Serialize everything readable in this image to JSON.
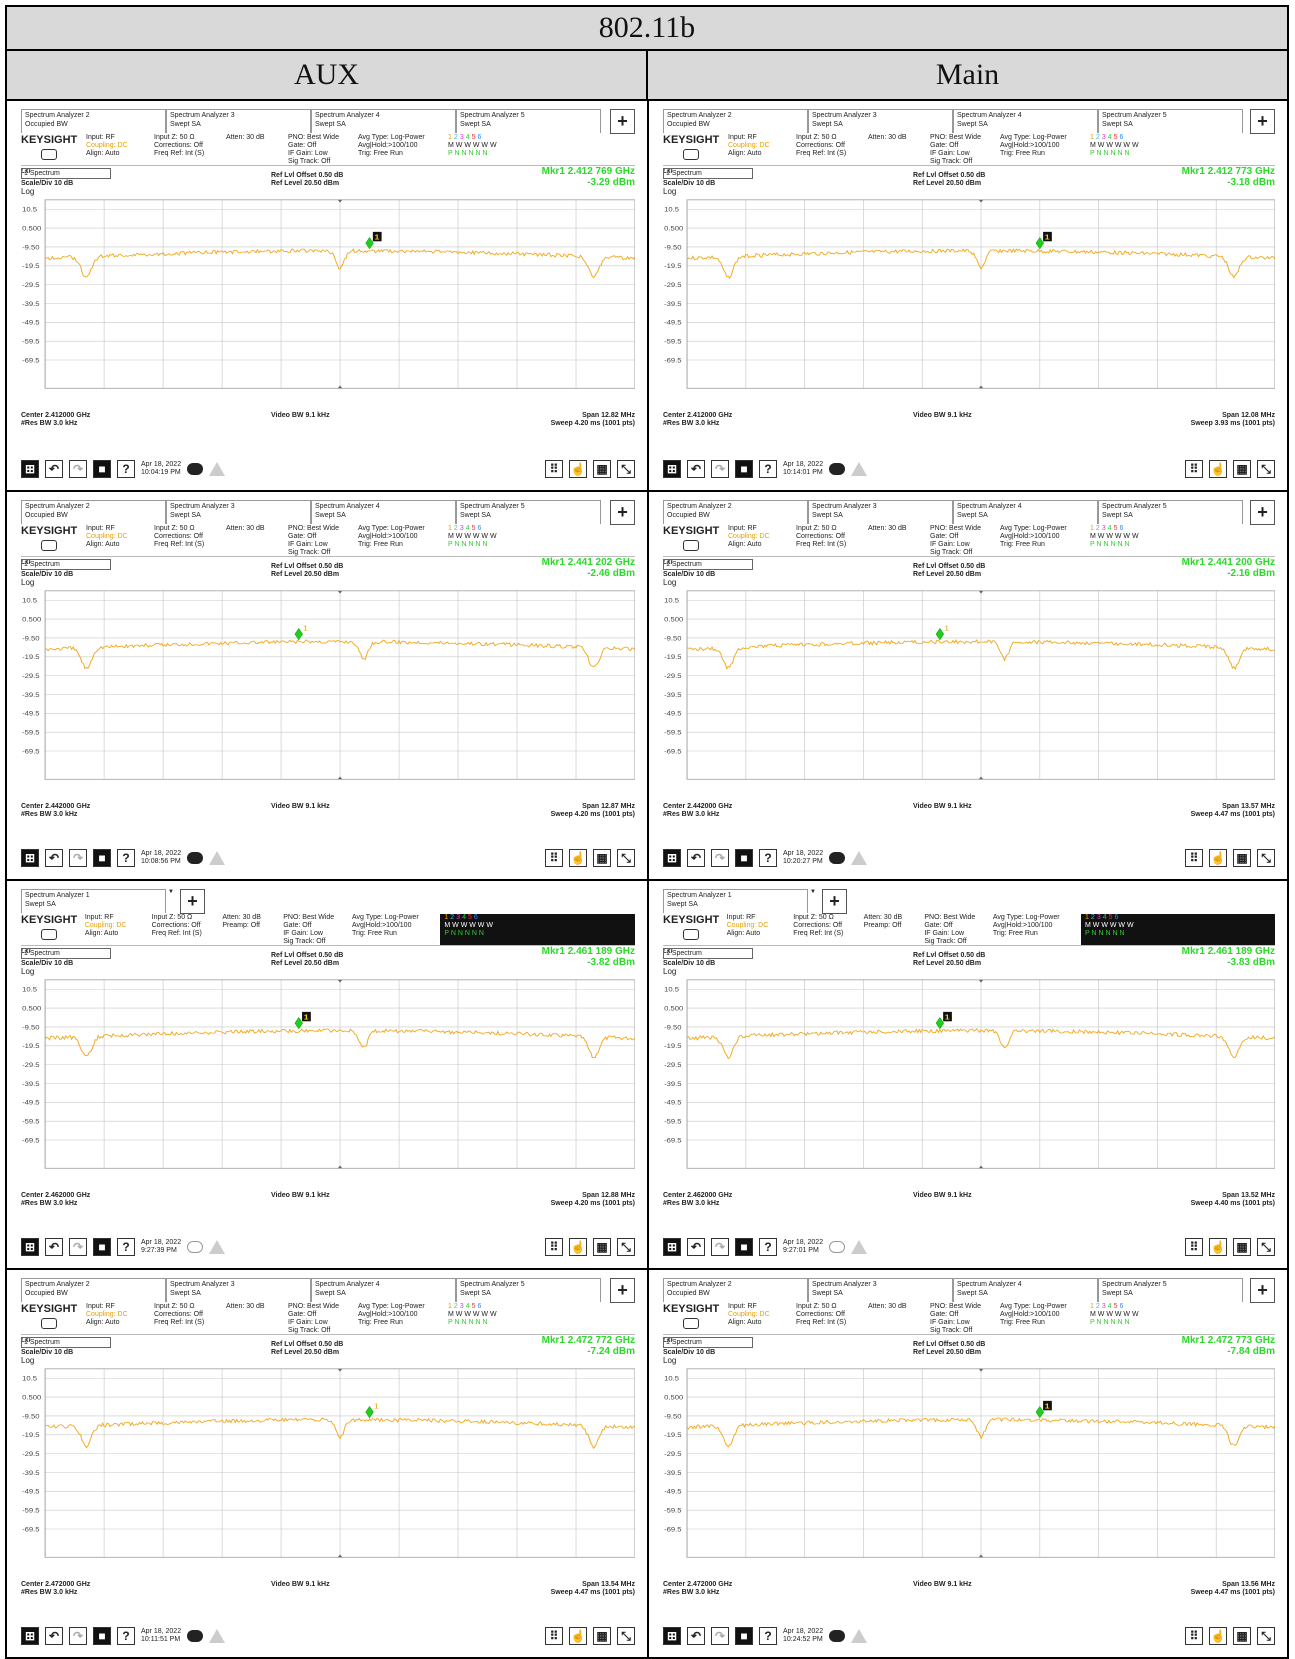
{
  "title": "802.11b",
  "columns": [
    "AUX",
    "Main"
  ],
  "common": {
    "brand": "KEYSIGHT",
    "lxi": "LXI",
    "input": "Input: RF",
    "coupling": "Coupling: DC",
    "align": "Align: Auto",
    "inputz": "Input Z: 50 Ω",
    "corrections": "Corrections: Off",
    "freqref": "Freq Ref: Int (S)",
    "atten": "Atten: 30 dB",
    "preamp": "Preamp: Off",
    "pno": "PNO: Best Wide",
    "gate": "Gate: Off",
    "ifgain": "IF Gain: Low",
    "sigtrack": "Sig Track: Off",
    "avgtype": "Avg Type: Log-Power",
    "avghold": "Avg|Hold:>100/100",
    "trig": "Trig: Free Run",
    "dropdown": "1 Spectrum",
    "scale": "Scale/Div 10 dB",
    "log": "Log",
    "reflvl_offset": "Ref Lvl Offset 0.50 dB",
    "ref_level": "Ref Level 20.50 dBm",
    "video_bw": "Video BW 9.1 kHz",
    "res_bw": "#Res BW 3.0 kHz",
    "trace_nums": [
      "1",
      "2",
      "3",
      "4",
      "5",
      "6"
    ],
    "trace_m": "M W W W W W",
    "trace_p": "P N N N N N",
    "y_ticks": [
      "10.5",
      "0.500",
      "-9.50",
      "-19.5",
      "-29.5",
      "-39.5",
      "-49.5",
      "-59.5",
      "-69.5"
    ]
  },
  "tabs4": [
    {
      "name": "Spectrum Analyzer 2",
      "mode": "Occupied BW"
    },
    {
      "name": "Spectrum Analyzer 3",
      "mode": "Swept SA"
    },
    {
      "name": "Spectrum Analyzer 4",
      "mode": "Swept SA"
    },
    {
      "name": "Spectrum Analyzer 5",
      "mode": "Swept SA"
    }
  ],
  "tabs1": [
    {
      "name": "Spectrum Analyzer 1",
      "mode": "Swept SA"
    }
  ],
  "panels": [
    {
      "id": "r1-aux",
      "row": 0,
      "col": 0,
      "tabs": "tabs4",
      "mkr_freq": "Mkr1  2.412 769 GHz",
      "mkr_amp": "-3.29 dBm",
      "center": "Center 2.412000 GHz",
      "span": "Span 12.82 MHz",
      "sweep": "Sweep 4.20 ms (1001 pts)",
      "date": "Apr 18, 2022",
      "time": "10:04:19 PM",
      "marker_pos": 0.55,
      "marker_label": "box"
    },
    {
      "id": "r1-main",
      "row": 0,
      "col": 1,
      "tabs": "tabs4",
      "mkr_freq": "Mkr1  2.412 773 GHz",
      "mkr_amp": "-3.18 dBm",
      "center": "Center 2.412000 GHz",
      "span": "Span 12.08 MHz",
      "sweep": "Sweep 3.93 ms (1001 pts)",
      "date": "Apr 18, 2022",
      "time": "10:14:01 PM",
      "marker_pos": 0.6,
      "marker_label": "box"
    },
    {
      "id": "r2-aux",
      "row": 1,
      "col": 0,
      "tabs": "tabs4",
      "mkr_freq": "Mkr1  2.441 202 GHz",
      "mkr_amp": "-2.46 dBm",
      "center": "Center 2.442000 GHz",
      "span": "Span 12.87 MHz",
      "sweep": "Sweep 4.20 ms (1001 pts)",
      "date": "Apr 18, 2022",
      "time": "10:08:56 PM",
      "marker_pos": 0.43,
      "marker_label": "text"
    },
    {
      "id": "r2-main",
      "row": 1,
      "col": 1,
      "tabs": "tabs4",
      "mkr_freq": "Mkr1  2.441 200 GHz",
      "mkr_amp": "-2.16 dBm",
      "center": "Center 2.442000 GHz",
      "span": "Span 13.57 MHz",
      "sweep": "Sweep 4.47 ms (1001 pts)",
      "date": "Apr 18, 2022",
      "time": "10:20:27 PM",
      "marker_pos": 0.43,
      "marker_label": "text"
    },
    {
      "id": "r3-aux",
      "row": 2,
      "col": 0,
      "tabs": "tabs1",
      "mkr_freq": "Mkr1  2.461 189 GHz",
      "mkr_amp": "-3.82 dBm",
      "center": "Center 2.462000 GHz",
      "span": "Span 12.88 MHz",
      "sweep": "Sweep 4.20 ms (1001 pts)",
      "date": "Apr 18, 2022",
      "time": "9:27:39 PM",
      "marker_pos": 0.43,
      "marker_label": "box"
    },
    {
      "id": "r3-main",
      "row": 2,
      "col": 1,
      "tabs": "tabs1",
      "mkr_freq": "Mkr1  2.461 189 GHz",
      "mkr_amp": "-3.83 dBm",
      "center": "Center 2.462000 GHz",
      "span": "Span 13.52 MHz",
      "sweep": "Sweep 4.40 ms (1001 pts)",
      "date": "Apr 18, 2022",
      "time": "9:27:01 PM",
      "marker_pos": 0.43,
      "marker_label": "box"
    },
    {
      "id": "r4-aux",
      "row": 3,
      "col": 0,
      "tabs": "tabs4",
      "mkr_freq": "Mkr1  2.472 772 GHz",
      "mkr_amp": "-7.24 dBm",
      "center": "Center 2.472000 GHz",
      "span": "Span 13.54 MHz",
      "sweep": "Sweep 4.47 ms (1001 pts)",
      "date": "Apr 18, 2022",
      "time": "10:11:51 PM",
      "marker_pos": 0.55,
      "marker_label": "text"
    },
    {
      "id": "r4-main",
      "row": 3,
      "col": 1,
      "tabs": "tabs4",
      "mkr_freq": "Mkr1  2.472 773 GHz",
      "mkr_amp": "-7.84 dBm",
      "center": "Center 2.472000 GHz",
      "span": "Span 13.56 MHz",
      "sweep": "Sweep 4.47 ms (1001 pts)",
      "date": "Apr 18, 2022",
      "time": "10:24:52 PM",
      "marker_pos": 0.6,
      "marker_label": "box"
    }
  ],
  "colors": {
    "trace": "#f2a81d",
    "marker": "#22cc22",
    "grid": "#c8c8c8"
  }
}
